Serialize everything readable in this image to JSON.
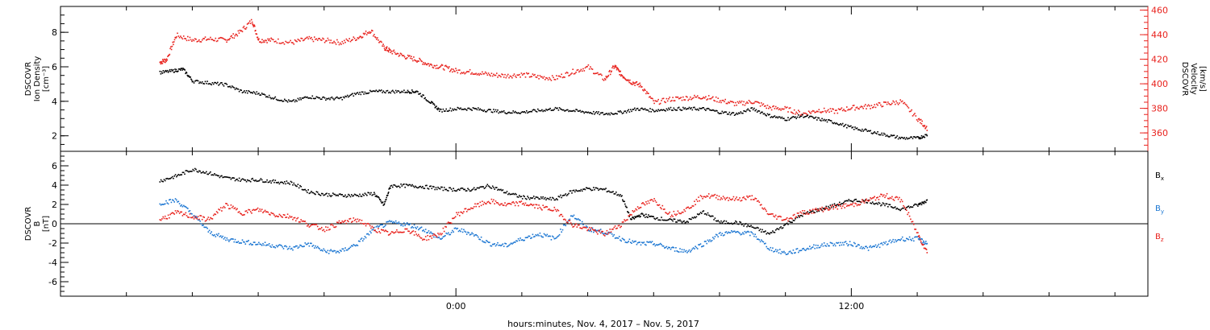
{
  "chart_data": [
    {
      "type": "scatter",
      "left_axis": {
        "lines": [
          "DSCOVR",
          "Ion Density",
          "[cm⁻³]"
        ],
        "ticks": [
          2,
          4,
          6,
          8
        ],
        "range": [
          1.1,
          9.5
        ]
      },
      "right_axis": {
        "lines": [
          "DSCOVR",
          "Velocity",
          "[km/s]"
        ],
        "ticks": [
          360,
          380,
          400,
          420,
          440,
          460
        ],
        "range": [
          345,
          463
        ],
        "color": "#e8221d"
      },
      "series": [
        {
          "color": "#e8221d",
          "axis": "right",
          "x": [
            -9.0,
            -8.8,
            -8.5,
            -8.0,
            -7.5,
            -7.0,
            -6.6,
            -6.2,
            -6.0,
            -5.6,
            -5.0,
            -4.5,
            -4.0,
            -3.5,
            -3.0,
            -2.6,
            -2.2,
            -2.0,
            -1.6,
            -1.2,
            -0.8,
            -0.4,
            0.0,
            0.5,
            1.0,
            1.5,
            2.0,
            2.5,
            3.0,
            3.5,
            4.0,
            4.5,
            4.8,
            5.0,
            5.3,
            5.6,
            6.0,
            6.5,
            7.0,
            7.5,
            8.0,
            8.5,
            9.0,
            9.5,
            10.0,
            10.5,
            11.0,
            11.5,
            12.0,
            12.5,
            13.0,
            13.5,
            14.0,
            14.3
          ],
          "y": [
            418,
            420,
            440,
            436,
            437,
            436,
            442,
            452,
            436,
            436,
            434,
            437,
            436,
            434,
            438,
            444,
            430,
            427,
            423,
            420,
            416,
            414,
            411,
            410,
            408,
            407,
            408,
            406,
            405,
            410,
            414,
            404,
            415,
            408,
            402,
            399,
            385,
            388,
            389,
            390,
            387,
            384,
            386,
            381,
            380,
            376,
            379,
            378,
            381,
            382,
            384,
            386,
            372,
            364
          ]
        },
        {
          "color": "#000000",
          "axis": "left",
          "x": [
            -9.0,
            -8.6,
            -8.3,
            -8.0,
            -7.5,
            -7.0,
            -6.5,
            -6.0,
            -5.5,
            -5.0,
            -4.5,
            -4.0,
            -3.5,
            -3.0,
            -2.5,
            -2.0,
            -1.5,
            -1.2,
            -0.8,
            -0.5,
            0.0,
            0.5,
            1.0,
            1.5,
            2.0,
            2.5,
            3.0,
            3.5,
            4.0,
            4.5,
            5.0,
            5.5,
            6.0,
            6.5,
            7.0,
            7.5,
            8.0,
            8.5,
            9.0,
            9.5,
            10.0,
            10.5,
            11.0,
            11.5,
            12.0,
            12.5,
            13.0,
            13.5,
            14.0,
            14.3
          ],
          "y": [
            5.7,
            5.8,
            5.9,
            5.2,
            5.1,
            5.0,
            4.6,
            4.5,
            4.2,
            4.0,
            4.3,
            4.2,
            4.2,
            4.5,
            4.6,
            4.6,
            4.6,
            4.6,
            4.0,
            3.5,
            3.6,
            3.6,
            3.5,
            3.4,
            3.4,
            3.5,
            3.6,
            3.5,
            3.4,
            3.3,
            3.4,
            3.6,
            3.5,
            3.6,
            3.6,
            3.6,
            3.4,
            3.3,
            3.6,
            3.2,
            3.0,
            3.2,
            3.0,
            2.8,
            2.5,
            2.3,
            2.1,
            1.9,
            1.9,
            2.1
          ]
        }
      ]
    },
    {
      "type": "scatter",
      "left_axis": {
        "lines": [
          "DSCOVR",
          "B",
          "[nT]"
        ],
        "ticks": [
          -6,
          -4,
          -2,
          0,
          2,
          4,
          6
        ],
        "range": [
          -7.5,
          7.5
        ]
      },
      "zero_line": true,
      "series": [
        {
          "name": "Bx",
          "color": "#000000",
          "x": [
            -9.0,
            -8.5,
            -8.0,
            -7.5,
            -7.0,
            -6.5,
            -6.0,
            -5.5,
            -5.0,
            -4.5,
            -4.0,
            -3.5,
            -3.0,
            -2.5,
            -2.2,
            -2.0,
            -1.5,
            -1.0,
            -0.5,
            0.0,
            0.5,
            1.0,
            1.5,
            2.0,
            2.5,
            3.0,
            3.5,
            4.0,
            4.5,
            5.0,
            5.3,
            5.6,
            6.0,
            6.5,
            7.0,
            7.5,
            8.0,
            8.5,
            9.0,
            9.5,
            10.0,
            10.5,
            11.0,
            11.5,
            12.0,
            12.5,
            13.0,
            13.5,
            14.0,
            14.3
          ],
          "y": [
            4.5,
            5.0,
            5.7,
            5.3,
            4.8,
            4.6,
            4.6,
            4.4,
            4.3,
            3.4,
            3.1,
            3.0,
            3.0,
            3.2,
            2.0,
            4.0,
            4.0,
            3.9,
            3.7,
            3.6,
            3.6,
            4.0,
            3.3,
            2.8,
            2.7,
            2.6,
            3.4,
            3.7,
            3.6,
            3.0,
            0.5,
            1.0,
            0.7,
            0.4,
            0.3,
            1.3,
            0.2,
            0.2,
            -0.3,
            -1.0,
            0.0,
            1.0,
            1.5,
            2.0,
            2.5,
            2.4,
            2.0,
            1.6,
            2.0,
            2.5
          ]
        },
        {
          "name": "By",
          "color": "#1b76d2",
          "x": [
            -9.0,
            -8.5,
            -8.0,
            -7.5,
            -7.0,
            -6.5,
            -6.0,
            -5.5,
            -5.0,
            -4.5,
            -4.0,
            -3.5,
            -3.0,
            -2.5,
            -2.0,
            -1.5,
            -1.0,
            -0.5,
            0.0,
            0.5,
            1.0,
            1.5,
            2.0,
            2.5,
            3.0,
            3.5,
            4.0,
            4.5,
            5.0,
            5.5,
            6.0,
            6.5,
            7.0,
            7.5,
            8.0,
            8.5,
            9.0,
            9.5,
            10.0,
            10.5,
            11.0,
            11.5,
            12.0,
            12.5,
            13.0,
            13.5,
            14.0,
            14.3
          ],
          "y": [
            2.2,
            2.5,
            1.0,
            -0.8,
            -1.5,
            -1.8,
            -2.0,
            -2.2,
            -2.5,
            -2.0,
            -2.8,
            -2.8,
            -2.0,
            -0.5,
            0.2,
            0.0,
            -0.5,
            -1.5,
            -0.5,
            -1.0,
            -2.0,
            -2.2,
            -1.5,
            -1.0,
            -1.5,
            1.0,
            -0.5,
            -0.8,
            -1.5,
            -2.0,
            -2.0,
            -2.5,
            -2.8,
            -2.0,
            -1.0,
            -0.8,
            -1.0,
            -2.5,
            -3.0,
            -2.6,
            -2.2,
            -2.0,
            -2.0,
            -2.5,
            -2.0,
            -1.5,
            -1.5,
            -2.0
          ]
        },
        {
          "name": "Bz",
          "color": "#e8221d",
          "x": [
            -9.0,
            -8.5,
            -8.0,
            -7.5,
            -7.0,
            -6.5,
            -6.0,
            -5.5,
            -5.0,
            -4.5,
            -4.0,
            -3.5,
            -3.0,
            -2.5,
            -2.0,
            -1.5,
            -1.0,
            -0.5,
            0.0,
            0.5,
            1.0,
            1.5,
            2.0,
            2.5,
            3.0,
            3.5,
            4.0,
            4.5,
            5.0,
            5.5,
            6.0,
            6.5,
            7.0,
            7.5,
            8.0,
            8.5,
            9.0,
            9.5,
            10.0,
            10.5,
            11.0,
            11.5,
            12.0,
            12.5,
            13.0,
            13.5,
            14.0,
            14.3
          ],
          "y": [
            0.5,
            1.2,
            0.8,
            0.5,
            2.0,
            1.2,
            1.5,
            1.0,
            0.8,
            0.0,
            -0.5,
            0.2,
            0.5,
            -0.5,
            -1.0,
            -0.5,
            -1.5,
            -1.0,
            1.0,
            1.8,
            2.4,
            2.0,
            2.2,
            1.8,
            1.5,
            0.0,
            -0.5,
            -1.0,
            0.0,
            1.8,
            2.5,
            1.0,
            1.6,
            3.0,
            2.8,
            2.6,
            2.8,
            1.0,
            0.5,
            1.2,
            1.5,
            1.8,
            2.0,
            2.5,
            3.0,
            2.5,
            -1.0,
            -3.0
          ]
        }
      ],
      "legend_labels": [
        "B",
        "B",
        "B"
      ],
      "legend_subscripts": [
        "x",
        "y",
        "z"
      ]
    }
  ],
  "x_axis": {
    "range": [
      -12,
      21
    ],
    "tick_labels": [
      "0:00",
      "12:00"
    ],
    "tick_positions": [
      0,
      12
    ],
    "minor_positions": [
      -10,
      -8,
      -6,
      -4,
      -2,
      2,
      4,
      6,
      8,
      10,
      14,
      16,
      18,
      20
    ],
    "label": "hours:minutes, Nov.  4, 2017 – Nov.  5, 2017"
  },
  "colors": {
    "red": "#e8221d",
    "blue": "#1b76d2",
    "black": "#000000"
  }
}
